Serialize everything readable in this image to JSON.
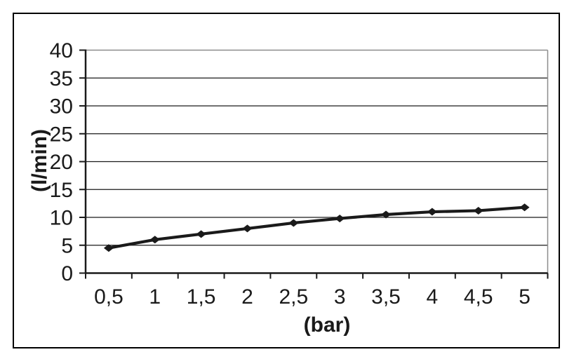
{
  "figure": {
    "background_color": "#ffffff",
    "outer_border_color": "#000000",
    "plot_border_color": "#8c8c8c",
    "gridline_color": "#1a1a1a",
    "axis_color": "#1a1a1a",
    "text_color": "#1a1a1a"
  },
  "chart_data": {
    "type": "line",
    "title": "",
    "xlabel": "(bar)",
    "ylabel": "(l/min)",
    "categories": [
      "0,5",
      "1",
      "1,5",
      "2",
      "2,5",
      "3",
      "3,5",
      "4",
      "4,5",
      "5"
    ],
    "x": [
      0.5,
      1,
      1.5,
      2,
      2.5,
      3,
      3.5,
      4,
      4.5,
      5
    ],
    "values": [
      4.5,
      6,
      7,
      8,
      9,
      9.8,
      10.5,
      11,
      11.2,
      11.8
    ],
    "ylim": [
      0,
      40
    ],
    "yticks": [
      0,
      5,
      10,
      15,
      20,
      25,
      30,
      35,
      40
    ],
    "grid": "horizontal",
    "legend": "none",
    "line_color": "#1a1a1a",
    "marker": "diamond",
    "marker_color": "#1a1a1a"
  }
}
